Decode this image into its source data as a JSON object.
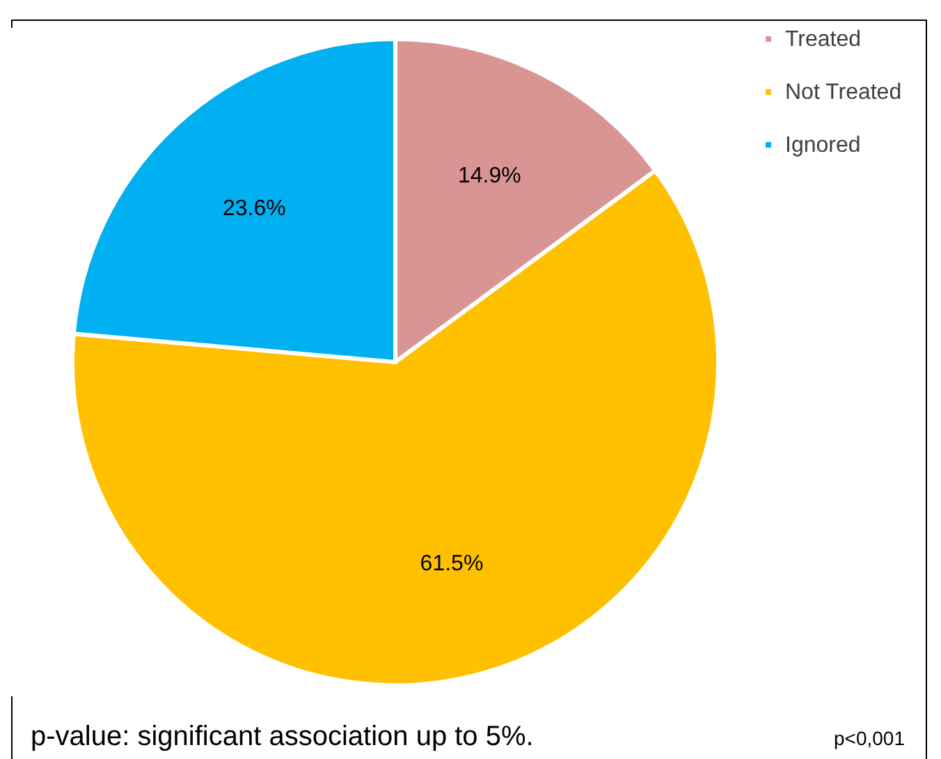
{
  "chart_data": {
    "type": "pie",
    "categories": [
      "Treated",
      "Not Treated",
      "Ignored"
    ],
    "values": [
      14.9,
      61.5,
      23.6
    ],
    "colors": [
      "#d99594",
      "#ffc000",
      "#00b0f0"
    ],
    "value_labels": [
      "14.9%",
      "61.5%",
      "23.6%"
    ],
    "legend": "right",
    "annotations": [
      "p-value: significant association up to 5%.",
      "p<0,001"
    ]
  }
}
